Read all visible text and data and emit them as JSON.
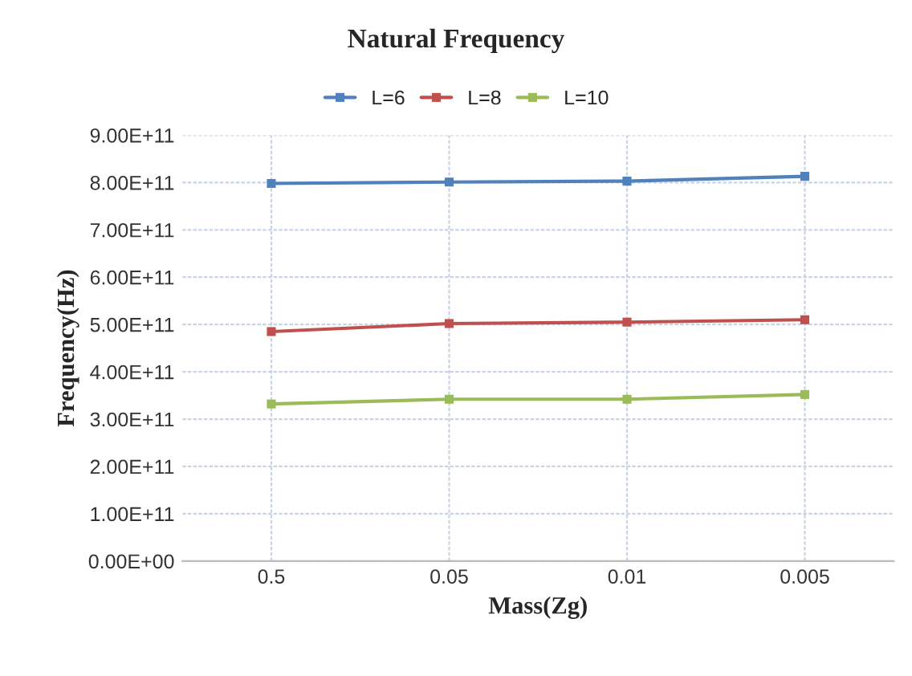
{
  "chart_data": {
    "type": "line",
    "title": "Natural Frequency",
    "xlabel": "Mass(Zg)",
    "ylabel": "Frequency(Hz)",
    "categories": [
      "0.5",
      "0.05",
      "0.01",
      "0.005"
    ],
    "series": [
      {
        "name": "L=6",
        "color": "#4f81bd",
        "values": [
          798000000000,
          801000000000,
          803000000000,
          813000000000
        ]
      },
      {
        "name": "L=8",
        "color": "#c0504d",
        "values": [
          485000000000,
          502000000000,
          505000000000,
          510000000000
        ]
      },
      {
        "name": "L=10",
        "color": "#9bbb59",
        "values": [
          332000000000,
          342000000000,
          342000000000,
          352000000000
        ]
      }
    ],
    "ylim": [
      0,
      900000000000
    ],
    "yticks": [
      {
        "value": 0,
        "label": "0.00E+00"
      },
      {
        "value": 100000000000,
        "label": "1.00E+11"
      },
      {
        "value": 200000000000,
        "label": "2.00E+11"
      },
      {
        "value": 300000000000,
        "label": "3.00E+11"
      },
      {
        "value": 400000000000,
        "label": "4.00E+11"
      },
      {
        "value": 500000000000,
        "label": "5.00E+11"
      },
      {
        "value": 600000000000,
        "label": "6.00E+11"
      },
      {
        "value": 700000000000,
        "label": "7.00E+11"
      },
      {
        "value": 800000000000,
        "label": "8.00E+11"
      },
      {
        "value": 900000000000,
        "label": "9.00E+11"
      }
    ],
    "grid": true,
    "legend": "top",
    "marker": "square",
    "line_style": "solid"
  }
}
